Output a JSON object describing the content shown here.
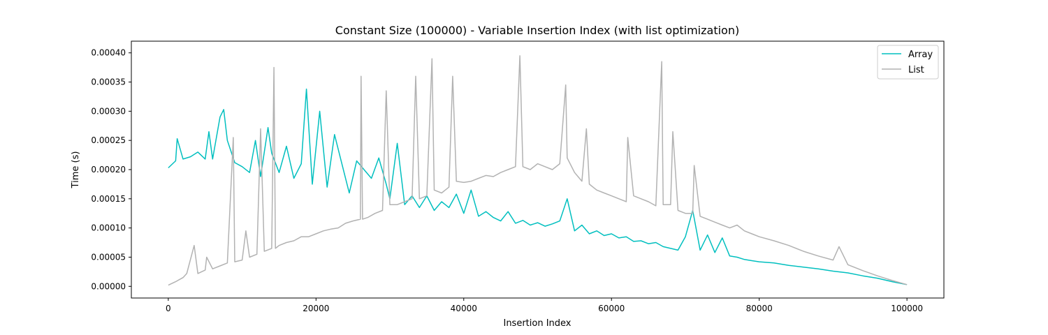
{
  "chart_data": {
    "type": "line",
    "title": "Constant Size (100000) - Variable Insertion Index (with list optimization)",
    "xlabel": "Insertion Index",
    "ylabel": "Time (s)",
    "xlim": [
      -5000,
      105000
    ],
    "ylim": [
      -2e-05,
      0.00042
    ],
    "x_ticks": [
      0,
      20000,
      40000,
      60000,
      80000,
      100000
    ],
    "x_tick_labels": [
      "0",
      "20000",
      "40000",
      "60000",
      "80000",
      "100000"
    ],
    "y_ticks": [
      0,
      5e-05,
      0.0001,
      0.00015,
      0.0002,
      0.00025,
      0.0003,
      0.00035,
      0.0004
    ],
    "y_tick_labels": [
      "0.00000",
      "0.00005",
      "0.00010",
      "0.00015",
      "0.00020",
      "0.00025",
      "0.00030",
      "0.00035",
      "0.00040"
    ],
    "grid": false,
    "legend_position": "top-right",
    "series": [
      {
        "name": "Array",
        "color": "#00bfbf",
        "points": [
          [
            0,
            0.000203
          ],
          [
            1000,
            0.000215
          ],
          [
            1200,
            0.000253
          ],
          [
            2000,
            0.000218
          ],
          [
            3000,
            0.000222
          ],
          [
            4000,
            0.00023
          ],
          [
            5000,
            0.000218
          ],
          [
            5500,
            0.000265
          ],
          [
            6000,
            0.000218
          ],
          [
            7000,
            0.00029
          ],
          [
            7500,
            0.000303
          ],
          [
            8000,
            0.00025
          ],
          [
            9000,
            0.000212
          ],
          [
            10000,
            0.000205
          ],
          [
            11000,
            0.000195
          ],
          [
            11800,
            0.00025
          ],
          [
            12500,
            0.000188
          ],
          [
            13500,
            0.000272
          ],
          [
            14000,
            0.000228
          ],
          [
            15000,
            0.000195
          ],
          [
            16000,
            0.00024
          ],
          [
            17000,
            0.000185
          ],
          [
            18000,
            0.00021
          ],
          [
            18700,
            0.000338
          ],
          [
            19500,
            0.000175
          ],
          [
            20500,
            0.0003
          ],
          [
            21500,
            0.00017
          ],
          [
            22500,
            0.00026
          ],
          [
            23500,
            0.00021
          ],
          [
            24500,
            0.00016
          ],
          [
            25500,
            0.000215
          ],
          [
            26500,
            0.0002
          ],
          [
            27500,
            0.000185
          ],
          [
            28500,
            0.00022
          ],
          [
            29500,
            0.000175
          ],
          [
            30000,
            0.00015
          ],
          [
            31000,
            0.000245
          ],
          [
            32000,
            0.00014
          ],
          [
            33000,
            0.000155
          ],
          [
            34000,
            0.000135
          ],
          [
            35000,
            0.000155
          ],
          [
            36000,
            0.00013
          ],
          [
            37000,
            0.000145
          ],
          [
            38000,
            0.000135
          ],
          [
            39000,
            0.000158
          ],
          [
            40000,
            0.000125
          ],
          [
            41000,
            0.000165
          ],
          [
            42000,
            0.00012
          ],
          [
            43000,
            0.000128
          ],
          [
            44000,
            0.000118
          ],
          [
            45000,
            0.000112
          ],
          [
            46000,
            0.000128
          ],
          [
            47000,
            0.000108
          ],
          [
            48000,
            0.000113
          ],
          [
            49000,
            0.000105
          ],
          [
            50000,
            0.000109
          ],
          [
            51000,
            0.000103
          ],
          [
            52000,
            0.000107
          ],
          [
            53000,
            0.000112
          ],
          [
            54000,
            0.00015
          ],
          [
            55000,
            9.5e-05
          ],
          [
            56000,
            0.000105
          ],
          [
            57000,
            9e-05
          ],
          [
            58000,
            9.5e-05
          ],
          [
            59000,
            8.7e-05
          ],
          [
            60000,
            9e-05
          ],
          [
            61000,
            8.3e-05
          ],
          [
            62000,
            8.5e-05
          ],
          [
            63000,
            7.7e-05
          ],
          [
            64000,
            7.8e-05
          ],
          [
            65000,
            7.3e-05
          ],
          [
            66000,
            7.5e-05
          ],
          [
            67000,
            6.8e-05
          ],
          [
            68000,
            6.5e-05
          ],
          [
            69000,
            6.2e-05
          ],
          [
            70000,
            8.5e-05
          ],
          [
            71000,
            0.00013
          ],
          [
            72000,
            6.2e-05
          ],
          [
            73000,
            8.8e-05
          ],
          [
            74000,
            5.8e-05
          ],
          [
            75000,
            8.3e-05
          ],
          [
            76000,
            5.2e-05
          ],
          [
            77000,
            5e-05
          ],
          [
            78000,
            4.6e-05
          ],
          [
            79000,
            4.4e-05
          ],
          [
            80000,
            4.2e-05
          ],
          [
            82000,
            4e-05
          ],
          [
            84000,
            3.6e-05
          ],
          [
            86000,
            3.3e-05
          ],
          [
            88000,
            3e-05
          ],
          [
            90000,
            2.6e-05
          ],
          [
            92000,
            2.3e-05
          ],
          [
            94000,
            1.8e-05
          ],
          [
            96000,
            1.4e-05
          ],
          [
            98000,
            8e-06
          ],
          [
            100000,
            3e-06
          ]
        ]
      },
      {
        "name": "List",
        "color": "#b2b2b2",
        "points": [
          [
            0,
            2e-06
          ],
          [
            1000,
            8e-06
          ],
          [
            2000,
            1.5e-05
          ],
          [
            2500,
            2.2e-05
          ],
          [
            3500,
            7e-05
          ],
          [
            4000,
            2.2e-05
          ],
          [
            5000,
            2.8e-05
          ],
          [
            5200,
            5e-05
          ],
          [
            6000,
            3e-05
          ],
          [
            7000,
            3.5e-05
          ],
          [
            8000,
            4e-05
          ],
          [
            8800,
            0.000255
          ],
          [
            9000,
            4.2e-05
          ],
          [
            10000,
            4.5e-05
          ],
          [
            10500,
            9.5e-05
          ],
          [
            11000,
            5e-05
          ],
          [
            12000,
            5.5e-05
          ],
          [
            12500,
            0.00027
          ],
          [
            13000,
            6e-05
          ],
          [
            14000,
            6.5e-05
          ],
          [
            14300,
            0.000375
          ],
          [
            14500,
            6.5e-05
          ],
          [
            15000,
            7e-05
          ],
          [
            16000,
            7.5e-05
          ],
          [
            17000,
            7.8e-05
          ],
          [
            18000,
            8.5e-05
          ],
          [
            19000,
            8.5e-05
          ],
          [
            20000,
            9e-05
          ],
          [
            21000,
            9.5e-05
          ],
          [
            22000,
            9.8e-05
          ],
          [
            23000,
            0.0001
          ],
          [
            24000,
            0.000108
          ],
          [
            25000,
            0.000112
          ],
          [
            26000,
            0.000115
          ],
          [
            26100,
            0.00036
          ],
          [
            26300,
            0.000115
          ],
          [
            27000,
            0.000118
          ],
          [
            28000,
            0.000125
          ],
          [
            29000,
            0.00013
          ],
          [
            29500,
            0.000335
          ],
          [
            30000,
            0.00014
          ],
          [
            31000,
            0.00014
          ],
          [
            32000,
            0.000145
          ],
          [
            33000,
            0.00015
          ],
          [
            33500,
            0.00036
          ],
          [
            34000,
            0.00015
          ],
          [
            35000,
            0.000155
          ],
          [
            35700,
            0.00039
          ],
          [
            36000,
            0.000165
          ],
          [
            37000,
            0.00016
          ],
          [
            38000,
            0.00017
          ],
          [
            38500,
            0.00036
          ],
          [
            39000,
            0.00018
          ],
          [
            40000,
            0.000178
          ],
          [
            41000,
            0.00018
          ],
          [
            42000,
            0.000185
          ],
          [
            43000,
            0.00019
          ],
          [
            44000,
            0.000188
          ],
          [
            45000,
            0.000195
          ],
          [
            46000,
            0.0002
          ],
          [
            47000,
            0.000205
          ],
          [
            47600,
            0.000395
          ],
          [
            48000,
            0.000205
          ],
          [
            49000,
            0.0002
          ],
          [
            50000,
            0.00021
          ],
          [
            51000,
            0.000205
          ],
          [
            52000,
            0.0002
          ],
          [
            53000,
            0.00021
          ],
          [
            53800,
            0.000345
          ],
          [
            54000,
            0.00022
          ],
          [
            55000,
            0.000195
          ],
          [
            56000,
            0.00018
          ],
          [
            56600,
            0.00027
          ],
          [
            57000,
            0.000175
          ],
          [
            58000,
            0.000165
          ],
          [
            59000,
            0.00016
          ],
          [
            60000,
            0.000155
          ],
          [
            61000,
            0.00015
          ],
          [
            62000,
            0.000145
          ],
          [
            62200,
            0.000255
          ],
          [
            63000,
            0.000155
          ],
          [
            64000,
            0.00015
          ],
          [
            65000,
            0.000145
          ],
          [
            66000,
            0.000138
          ],
          [
            66800,
            0.000385
          ],
          [
            67000,
            0.00014
          ],
          [
            68000,
            0.00014
          ],
          [
            68300,
            0.000265
          ],
          [
            69000,
            0.00013
          ],
          [
            70000,
            0.000125
          ],
          [
            71000,
            0.000125
          ],
          [
            71200,
            0.000207
          ],
          [
            72000,
            0.00012
          ],
          [
            73000,
            0.000115
          ],
          [
            74000,
            0.00011
          ],
          [
            75000,
            0.000105
          ],
          [
            76000,
            0.0001
          ],
          [
            77000,
            0.000105
          ],
          [
            78000,
            9.5e-05
          ],
          [
            79000,
            9e-05
          ],
          [
            80000,
            8.5e-05
          ],
          [
            82000,
            7.8e-05
          ],
          [
            84000,
            7e-05
          ],
          [
            86000,
            6e-05
          ],
          [
            88000,
            5.2e-05
          ],
          [
            90000,
            4.5e-05
          ],
          [
            90800,
            6.8e-05
          ],
          [
            92000,
            3.7e-05
          ],
          [
            94000,
            2.7e-05
          ],
          [
            96000,
            1.8e-05
          ],
          [
            98000,
            1e-05
          ],
          [
            100000,
            3e-06
          ]
        ]
      }
    ]
  }
}
